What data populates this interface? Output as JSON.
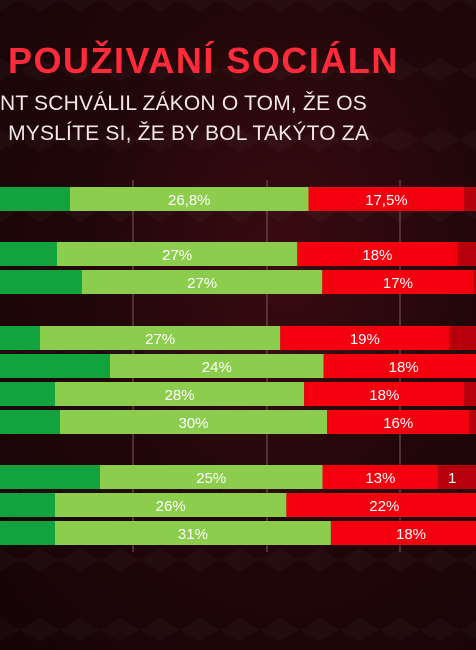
{
  "header": {
    "title": "POUŽIVANÍ SOCIÁLN",
    "question_line1": "NT SCHVÁLIL ZÁKON O TOM, ŽE OS",
    "question_line2": ". MYSLÍTE SI, ŽE BY BOL TAKÝTO ZA"
  },
  "colors": {
    "dark_green": "#12a33f",
    "light_green": "#8ccd4e",
    "red": "#f4000f",
    "dark_red": "#b6000c",
    "grid": "#7a5a60",
    "label": "#ffffff"
  },
  "chart_data": {
    "type": "bar",
    "orientation": "horizontal",
    "stacked": true,
    "unit": "%",
    "rows": [
      {
        "group": 1,
        "segments": [
          {
            "series": "dark_green",
            "value": null,
            "label": ""
          },
          {
            "series": "light_green",
            "value": 26.8,
            "label": "26,8%"
          },
          {
            "series": "red",
            "value": 17.5,
            "label": "17,5%"
          },
          {
            "series": "dark_red",
            "value": null,
            "label": ""
          }
        ]
      },
      {
        "group": 2,
        "segments": [
          {
            "series": "dark_green",
            "value": null,
            "label": ""
          },
          {
            "series": "light_green",
            "value": 27,
            "label": "27%"
          },
          {
            "series": "red",
            "value": 18,
            "label": "18%"
          },
          {
            "series": "dark_red",
            "value": null,
            "label": ""
          }
        ]
      },
      {
        "group": 2,
        "segments": [
          {
            "series": "dark_green",
            "value": null,
            "label": ""
          },
          {
            "series": "light_green",
            "value": 27,
            "label": "27%"
          },
          {
            "series": "red",
            "value": 17,
            "label": "17%"
          },
          {
            "series": "dark_red",
            "value": null,
            "label": ""
          }
        ]
      },
      {
        "group": 3,
        "segments": [
          {
            "series": "dark_green",
            "value": null,
            "label": ""
          },
          {
            "series": "light_green",
            "value": 27,
            "label": "27%"
          },
          {
            "series": "red",
            "value": 19,
            "label": "19%"
          },
          {
            "series": "dark_red",
            "value": null,
            "label": ""
          }
        ]
      },
      {
        "group": 3,
        "segments": [
          {
            "series": "dark_green",
            "value": null,
            "label": ""
          },
          {
            "series": "light_green",
            "value": 24,
            "label": "24%"
          },
          {
            "series": "red",
            "value": 18,
            "label": "18%"
          },
          {
            "series": "dark_red",
            "value": null,
            "label": ""
          }
        ]
      },
      {
        "group": 3,
        "segments": [
          {
            "series": "dark_green",
            "value": null,
            "label": ""
          },
          {
            "series": "light_green",
            "value": 28,
            "label": "28%"
          },
          {
            "series": "red",
            "value": 18,
            "label": "18%"
          },
          {
            "series": "dark_red",
            "value": null,
            "label": ""
          }
        ]
      },
      {
        "group": 3,
        "segments": [
          {
            "series": "dark_green",
            "value": null,
            "label": ""
          },
          {
            "series": "light_green",
            "value": 30,
            "label": "30%"
          },
          {
            "series": "red",
            "value": 16,
            "label": "16%"
          },
          {
            "series": "dark_red",
            "value": null,
            "label": ""
          }
        ]
      },
      {
        "group": 4,
        "segments": [
          {
            "series": "dark_green",
            "value": null,
            "label": ""
          },
          {
            "series": "light_green",
            "value": 25,
            "label": "25%"
          },
          {
            "series": "red",
            "value": 13,
            "label": "13%"
          },
          {
            "series": "dark_red",
            "value": null,
            "label": "1"
          }
        ]
      },
      {
        "group": 4,
        "segments": [
          {
            "series": "dark_green",
            "value": null,
            "label": ""
          },
          {
            "series": "light_green",
            "value": 26,
            "label": "26%"
          },
          {
            "series": "red",
            "value": 22,
            "label": "22%"
          },
          {
            "series": "dark_red",
            "value": null,
            "label": ""
          }
        ]
      },
      {
        "group": 4,
        "segments": [
          {
            "series": "dark_green",
            "value": null,
            "label": ""
          },
          {
            "series": "light_green",
            "value": 31,
            "label": "31%"
          },
          {
            "series": "red",
            "value": 18,
            "label": "18%"
          },
          {
            "series": "dark_red",
            "value": null,
            "label": ""
          }
        ]
      }
    ]
  }
}
